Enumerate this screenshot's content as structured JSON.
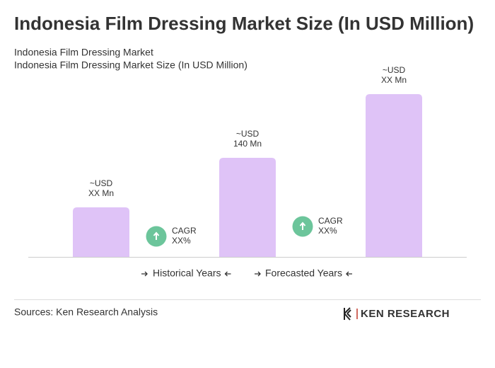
{
  "chart_data": {
    "type": "bar",
    "title": "Indonesia Film Dressing Market Size (In USD Million)",
    "subtitle": [
      "Indonesia Film Dressing Market",
      "Indonesia Film Dressing Market Size (In USD Million)"
    ],
    "categories": [
      null,
      null,
      null
    ],
    "values": [
      70,
      140,
      230
    ],
    "value_labels": [
      [
        "~USD",
        "XX Mn"
      ],
      [
        "~USD",
        "140 Mn"
      ],
      [
        "~USD",
        "XX Mn"
      ]
    ],
    "color": "#dfc3f7",
    "annotations": [
      [
        "CAGR",
        "XX%"
      ],
      [
        "CAGR",
        "XX%"
      ]
    ],
    "annotation_color": "#6cc59b",
    "legend": [
      "Historical Years",
      "Forecasted Years"
    ],
    "source": "Sources: Ken Research Analysis",
    "logo": "KEN RESEARCH"
  }
}
